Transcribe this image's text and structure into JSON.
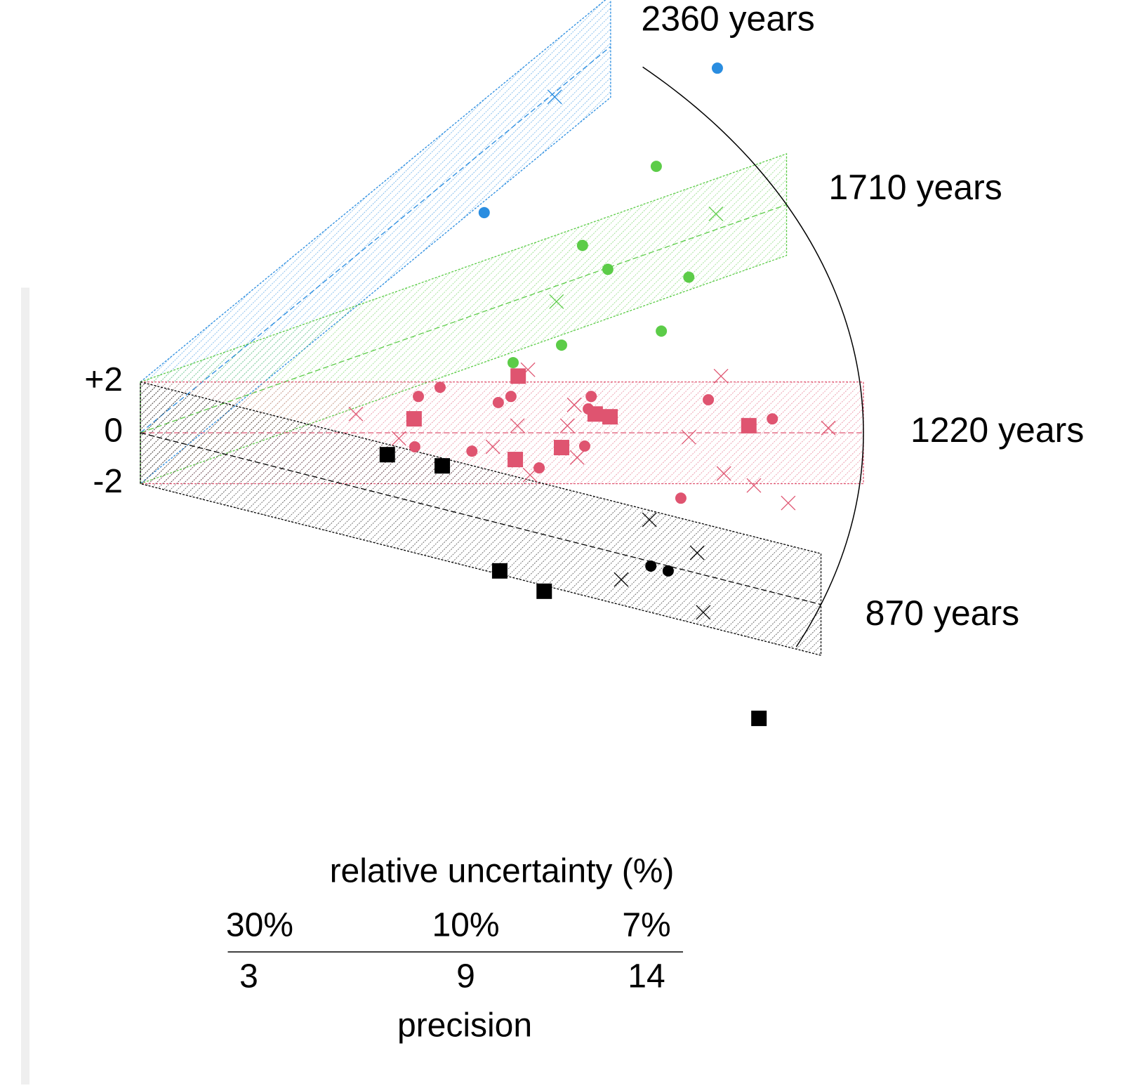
{
  "chart_data": {
    "type": "radial",
    "center_age": 1220,
    "xlim": [
      0,
      20
    ],
    "ylim": [
      -12,
      16
    ],
    "yticks": [
      {
        "value": 2,
        "label": "+2"
      },
      0,
      -2
    ],
    "radial_ticks": [
      {
        "value": 2360,
        "label": "2360 years"
      },
      {
        "value": 1710,
        "label": "1710 years"
      },
      {
        "value": 1220,
        "label": "1220 years"
      },
      {
        "value": 870,
        "label": "870 years"
      }
    ],
    "xlabel_top": "relative uncertainty (%)",
    "xticks_top": [
      {
        "value": 3.3,
        "label": "30%"
      },
      {
        "value": 9,
        "label": "10%"
      },
      {
        "value": 14,
        "label": "7%"
      }
    ],
    "xticks": [
      3,
      9,
      14
    ],
    "xlabel": "precision",
    "series": [
      {
        "color": "#2a8de0",
        "age": 2360,
        "markers": [
          {
            "shape": "circle",
            "x": [
              15.96,
              9.51
            ],
            "y": [
              14.34,
              8.66
            ]
          },
          {
            "shape": "cross",
            "x": [
              11.46
            ],
            "y": [
              13.21
            ]
          }
        ]
      },
      {
        "color": "#5ccc48",
        "age": 1710,
        "markers": [
          {
            "shape": "circle",
            "x": [
              14.27,
              12.23,
              12.93,
              15.17,
              14.41,
              11.65,
              10.31
            ],
            "y": [
              10.48,
              7.37,
              6.43,
              6.12,
              4.0,
              3.45,
              2.76
            ]
          },
          {
            "shape": "cross",
            "x": [
              15.92,
              11.51
            ],
            "y": [
              8.61,
              5.16
            ]
          }
        ]
      },
      {
        "color": "#df5470",
        "age": 1220,
        "markers": [
          {
            "shape": "circle",
            "x": [
              7.69,
              8.29,
              9.9,
              10.25,
              12.47,
              12.39,
              15.71,
              17.48,
              7.59,
              9.17,
              12.29,
              11.03,
              14.95
            ],
            "y": [
              1.43,
              1.79,
              1.19,
              1.43,
              1.43,
              0.94,
              1.3,
              0.55,
              -0.55,
              -0.72,
              -0.52,
              -1.38,
              -2.57
            ]
          },
          {
            "shape": "square",
            "x": [
              10.45,
              7.57,
              12.58,
              12.99,
              16.83,
              11.65,
              10.37
            ],
            "y": [
              2.23,
              0.55,
              0.74,
              0.63,
              0.28,
              -0.58,
              -1.05
            ]
          },
          {
            "shape": "cross",
            "x": [
              5.96,
              10.72,
              16.06,
              12.0,
              11.81,
              10.43,
              19.03,
              15.17,
              9.75,
              12.08,
              10.78,
              16.14,
              16.97,
              17.92,
              7.15
            ],
            "y": [
              0.74,
              2.48,
              2.23,
              1.1,
              0.28,
              0.28,
              0.19,
              -0.17,
              -0.55,
              -0.97,
              -1.66,
              -1.6,
              -2.07,
              -2.76,
              -0.22
            ]
          }
        ]
      },
      {
        "color": "#000000",
        "age": 870,
        "markers": [
          {
            "shape": "circle",
            "x": [
              14.12,
              14.6
            ],
            "y": [
              -5.24,
              -5.43
            ]
          },
          {
            "shape": "square",
            "x": [
              6.83,
              8.35,
              9.94,
              11.17,
              17.11
            ],
            "y": [
              -0.86,
              -1.3,
              -5.43,
              -6.23,
              -11.23
            ]
          },
          {
            "shape": "cross",
            "x": [
              14.08,
              15.4,
              13.3,
              15.57
            ],
            "y": [
              -3.42,
              -4.72,
              -5.77,
              -7.06
            ]
          }
        ]
      }
    ]
  }
}
